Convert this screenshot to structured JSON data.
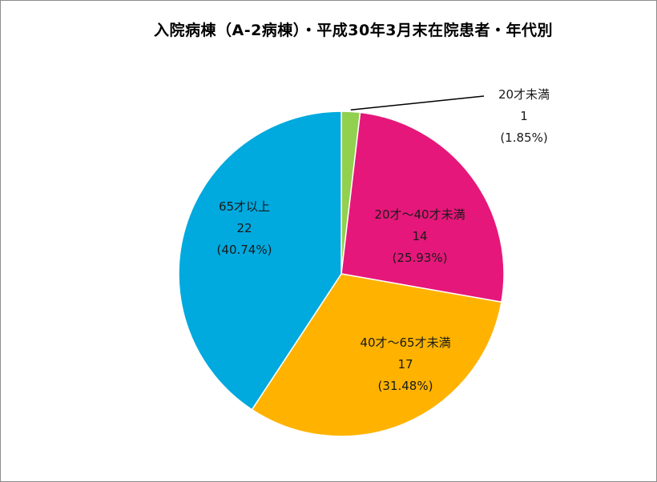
{
  "chart_data": {
    "type": "pie",
    "title": "入院病棟（A-2病棟）・平成30年3月末在院患者・年代別",
    "start_angle_deg": 0,
    "direction": "clockwise",
    "legend": "none",
    "slices": [
      {
        "category": "20才未満",
        "value": 1,
        "percent_label": "(1.85%)",
        "color": "#92d050"
      },
      {
        "category": "20才～40才未満",
        "value": 14,
        "percent_label": "(25.93%)",
        "color": "#e6177a"
      },
      {
        "category": "40才～65才未満",
        "value": 17,
        "percent_label": "(31.48%)",
        "color": "#ffb300"
      },
      {
        "category": "65才以上",
        "value": 22,
        "percent_label": "(40.74%)",
        "color": "#00a9de"
      }
    ]
  }
}
